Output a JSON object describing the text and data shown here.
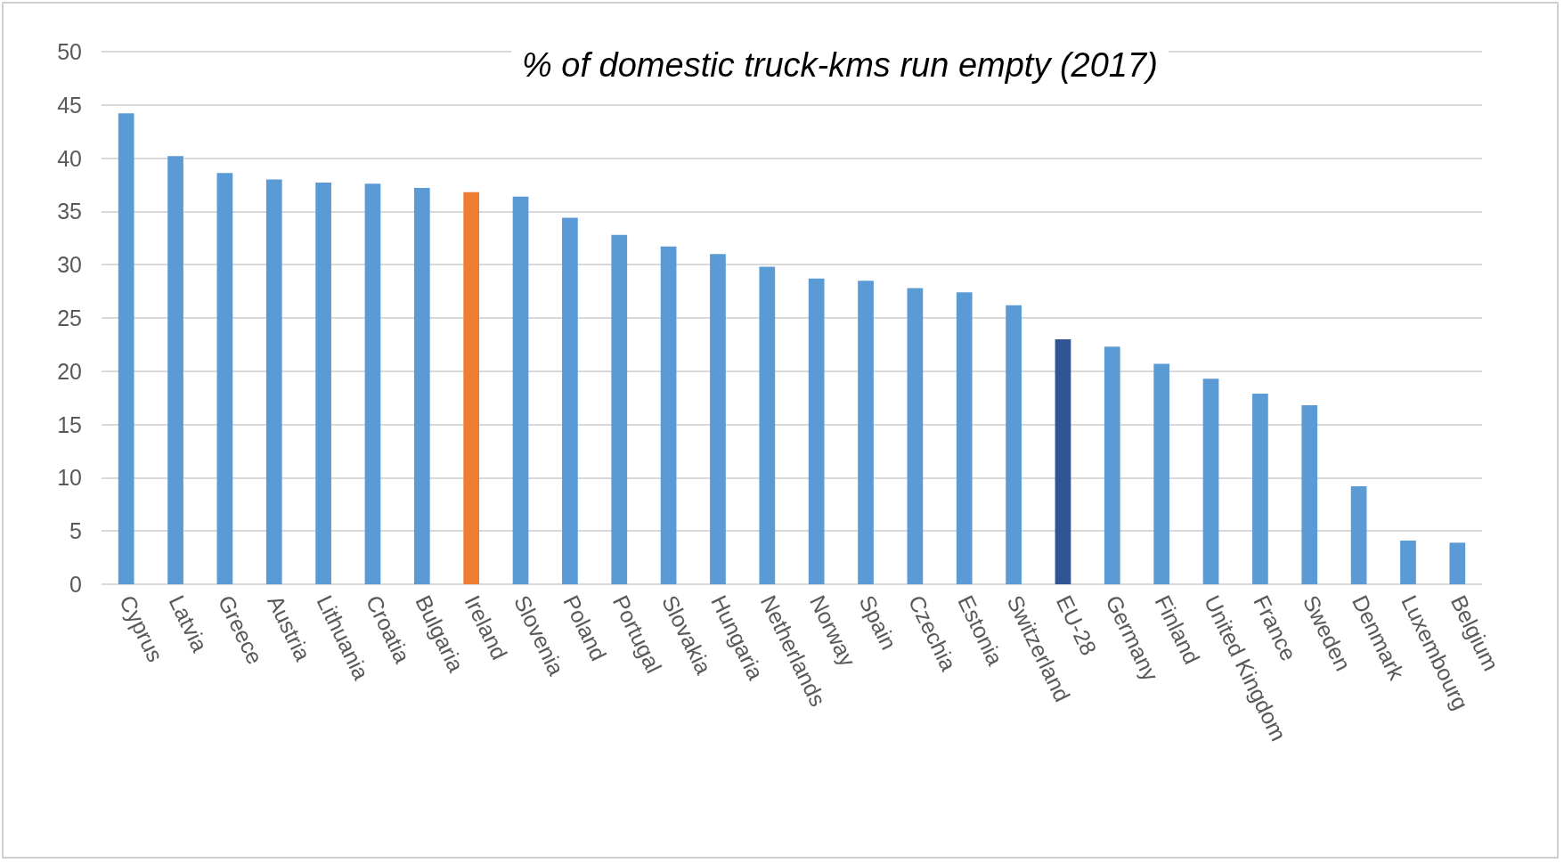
{
  "chart_data": {
    "type": "bar",
    "title": "% of domestic truck-kms run empty (2017)",
    "categories": [
      "Cyprus",
      "Latvia",
      "Greece",
      "Austria",
      "Lithuania",
      "Croatia",
      "Bulgaria",
      "Ireland",
      "Slovenia",
      "Poland",
      "Portugal",
      "Slovakia",
      "Hungaria",
      "Netherlands",
      "Norway",
      "Spain",
      "Czechia",
      "Estonia",
      "Switzerland",
      "EU-28",
      "Germany",
      "Finland",
      "United Kingdom",
      "France",
      "Sweden",
      "Denmark",
      "Luxembourg",
      "Belgium"
    ],
    "values": [
      44.2,
      40.2,
      38.6,
      38.0,
      37.7,
      37.6,
      37.2,
      36.8,
      36.4,
      34.4,
      32.8,
      31.7,
      31.0,
      29.8,
      28.7,
      28.5,
      27.8,
      27.4,
      26.2,
      23.0,
      22.3,
      20.7,
      19.3,
      17.9,
      16.8,
      9.2,
      4.1,
      3.9
    ],
    "colors": [
      "#5b9bd5",
      "#5b9bd5",
      "#5b9bd5",
      "#5b9bd5",
      "#5b9bd5",
      "#5b9bd5",
      "#5b9bd5",
      "#ed7d31",
      "#5b9bd5",
      "#5b9bd5",
      "#5b9bd5",
      "#5b9bd5",
      "#5b9bd5",
      "#5b9bd5",
      "#5b9bd5",
      "#5b9bd5",
      "#5b9bd5",
      "#5b9bd5",
      "#5b9bd5",
      "#2f5597",
      "#5b9bd5",
      "#5b9bd5",
      "#5b9bd5",
      "#5b9bd5",
      "#5b9bd5",
      "#5b9bd5",
      "#5b9bd5",
      "#5b9bd5"
    ],
    "ylim": [
      0,
      50
    ],
    "yticks": [
      0,
      5,
      10,
      15,
      20,
      25,
      30,
      35,
      40,
      45,
      50
    ],
    "grid": "y"
  }
}
